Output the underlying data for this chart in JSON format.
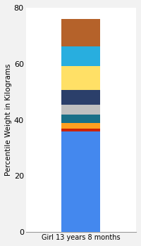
{
  "categories": [
    "Girl 13 years 8 months"
  ],
  "segments": [
    {
      "label": "bottom_blue",
      "value": 36.0,
      "color": "#4488EE"
    },
    {
      "label": "red",
      "value": 1.0,
      "color": "#CC2200"
    },
    {
      "label": "orange",
      "value": 1.8,
      "color": "#FFA020"
    },
    {
      "label": "teal",
      "value": 3.0,
      "color": "#1A7088"
    },
    {
      "label": "silver",
      "value": 3.5,
      "color": "#C0C0C0"
    },
    {
      "label": "dark_navy",
      "value": 5.5,
      "color": "#2B3F6A"
    },
    {
      "label": "yellow",
      "value": 8.5,
      "color": "#FFE066"
    },
    {
      "label": "sky_blue",
      "value": 7.0,
      "color": "#28AEDF"
    },
    {
      "label": "brown",
      "value": 9.7,
      "color": "#B5622A"
    }
  ],
  "ylabel": "Percentile Weight in Kilograms",
  "ylim": [
    0,
    80
  ],
  "yticks": [
    0,
    20,
    40,
    60,
    80
  ],
  "bg_color": "#F2F2F2",
  "plot_bg_color": "#FFFFFF",
  "ylabel_fontsize": 7.5,
  "xtick_fontsize": 7,
  "ytick_fontsize": 8,
  "bar_width": 0.35
}
